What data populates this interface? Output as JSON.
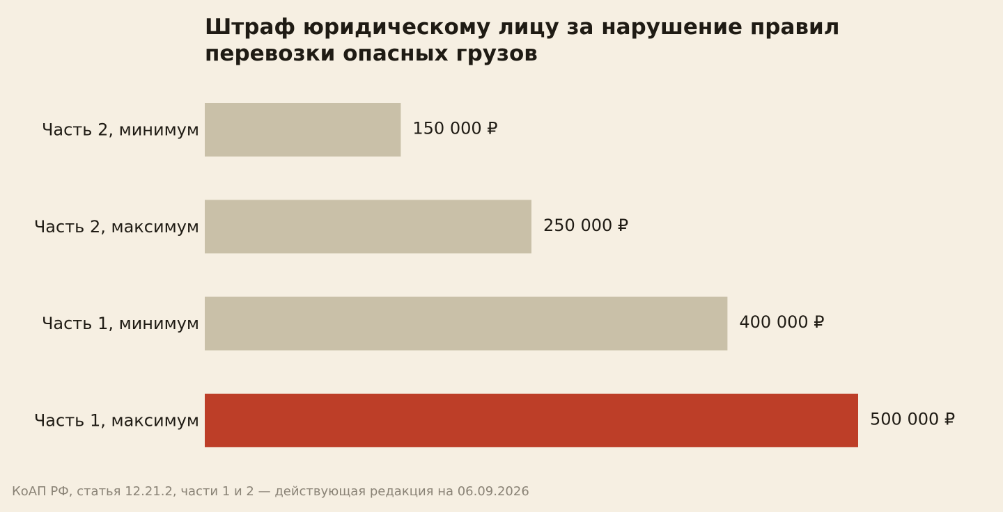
{
  "chart_data": {
    "type": "bar",
    "orientation": "horizontal",
    "title_lines": [
      "Штраф юридическому лицу за нарушение правил",
      "перевозки опасных грузов"
    ],
    "categories": [
      "Часть 2, минимум",
      "Часть 2, максимум",
      "Часть 1, минимум",
      "Часть 1, максимум"
    ],
    "values": [
      150000,
      250000,
      400000,
      500000
    ],
    "value_labels": [
      "150 000 ₽",
      "250 000 ₽",
      "400 000 ₽",
      "500 000 ₽"
    ],
    "bar_colors": [
      "#c9c0a8",
      "#c9c0a8",
      "#c9c0a8",
      "#bd3e28"
    ],
    "highlighted_category": "Часть 1, максимум",
    "xlim": [
      0,
      500000
    ],
    "xlabel": "",
    "ylabel": "",
    "grid": false,
    "legend": "none"
  },
  "source_note": "КоАП РФ, статья 12.21.2, части 1 и 2 — действующая редакция на 06.09.2026",
  "colors": {
    "background": "#f6efe2",
    "text": "#1f1b14",
    "muted_text": "#8a8376",
    "bar_default": "#c9c0a8",
    "bar_highlight": "#bd3e28"
  }
}
